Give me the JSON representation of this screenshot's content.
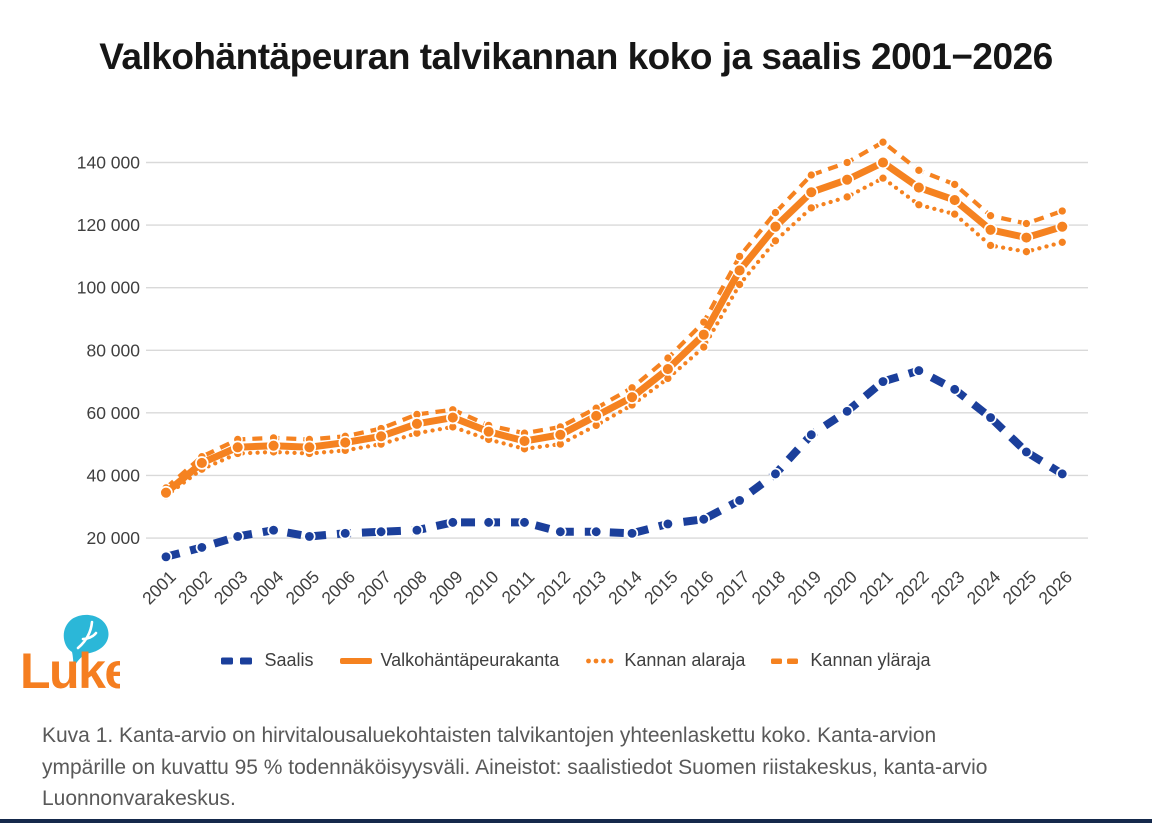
{
  "title": "Valkohäntäpeuran talvikannan koko ja saalis 2001−2026",
  "colors": {
    "saalis_blue": "#1B3F9B",
    "kanta_orange": "#F58220",
    "grid": "#D9D9D9",
    "axis_text": "#3F3F3F",
    "title_text": "#161616",
    "caption_text": "#595959",
    "logo_orange": "#F57E20",
    "logo_cyan": "#2BB7D8",
    "footer_bar": "#15294B"
  },
  "chart_data": {
    "type": "line",
    "title": "Valkohäntäpeuran talvikannan koko ja saalis 2001−2026",
    "x": [
      "2001",
      "2002",
      "2003",
      "2004",
      "2005",
      "2006",
      "2007",
      "2008",
      "2009",
      "2010",
      "2011",
      "2012",
      "2013",
      "2014",
      "2015",
      "2016",
      "2017",
      "2018",
      "2019",
      "2020",
      "2021",
      "2022",
      "2023",
      "2024",
      "2025",
      "2026"
    ],
    "y_ticks": [
      20000,
      40000,
      60000,
      80000,
      100000,
      120000,
      140000
    ],
    "y_tick_labels": [
      "20 000",
      "40 000",
      "60 000",
      "80 000",
      "100 000",
      "120 000",
      "140 000"
    ],
    "ylim": [
      0,
      150000
    ],
    "grid": true,
    "legend_position": "bottom",
    "series": [
      {
        "name": "Saalis",
        "style": "dashed",
        "color": "blue",
        "values": [
          14000,
          17000,
          20500,
          22500,
          20500,
          21500,
          22000,
          22500,
          25000,
          25000,
          25000,
          22000,
          22000,
          21500,
          24500,
          26000,
          32000,
          40500,
          53000,
          60500,
          70000,
          73500,
          67500,
          58500,
          47500,
          40500
        ]
      },
      {
        "name": "Valkohäntäpeurakanta",
        "style": "solid",
        "color": "orange",
        "values": [
          34500,
          44000,
          49000,
          49500,
          49000,
          50500,
          52500,
          56500,
          58500,
          54000,
          51000,
          53000,
          59000,
          65000,
          74000,
          85000,
          105500,
          119500,
          130500,
          134500,
          140000,
          132000,
          128000,
          118500,
          116000,
          119500
        ]
      },
      {
        "name": "Kannan alaraja",
        "style": "dotted",
        "color": "orange",
        "values": [
          33500,
          42000,
          47000,
          47500,
          47000,
          48000,
          50000,
          53500,
          55500,
          51500,
          48500,
          50000,
          56000,
          62500,
          71000,
          81000,
          101000,
          115000,
          125500,
          129000,
          135000,
          126500,
          123500,
          113500,
          111500,
          114500
        ]
      },
      {
        "name": "Kannan yläraja",
        "style": "dashed",
        "color": "orange",
        "values": [
          36000,
          46000,
          51500,
          52000,
          51500,
          52500,
          55000,
          59500,
          61000,
          56000,
          53500,
          55500,
          61500,
          68000,
          77500,
          89000,
          110000,
          124000,
          136000,
          140000,
          146500,
          137500,
          133000,
          123000,
          120500,
          124500
        ]
      }
    ]
  },
  "legend": {
    "items": [
      {
        "label": "Saalis"
      },
      {
        "label": "Valkohäntäpeurakanta"
      },
      {
        "label": "Kannan alaraja"
      },
      {
        "label": "Kannan yläraja"
      }
    ]
  },
  "logo": {
    "text": "Luke"
  },
  "caption": {
    "lines": [
      "Kuva 1. Kanta-arvio on hirvitalousaluekohtaisten talvikantojen yhteenlaskettu koko. Kanta-arvion",
      "ympärille on kuvattu 95 % todennäköisyysväli. Aineistot: saalistiedot Suomen riistakeskus, kanta-arvio",
      "Luonnonvarakeskus."
    ]
  }
}
